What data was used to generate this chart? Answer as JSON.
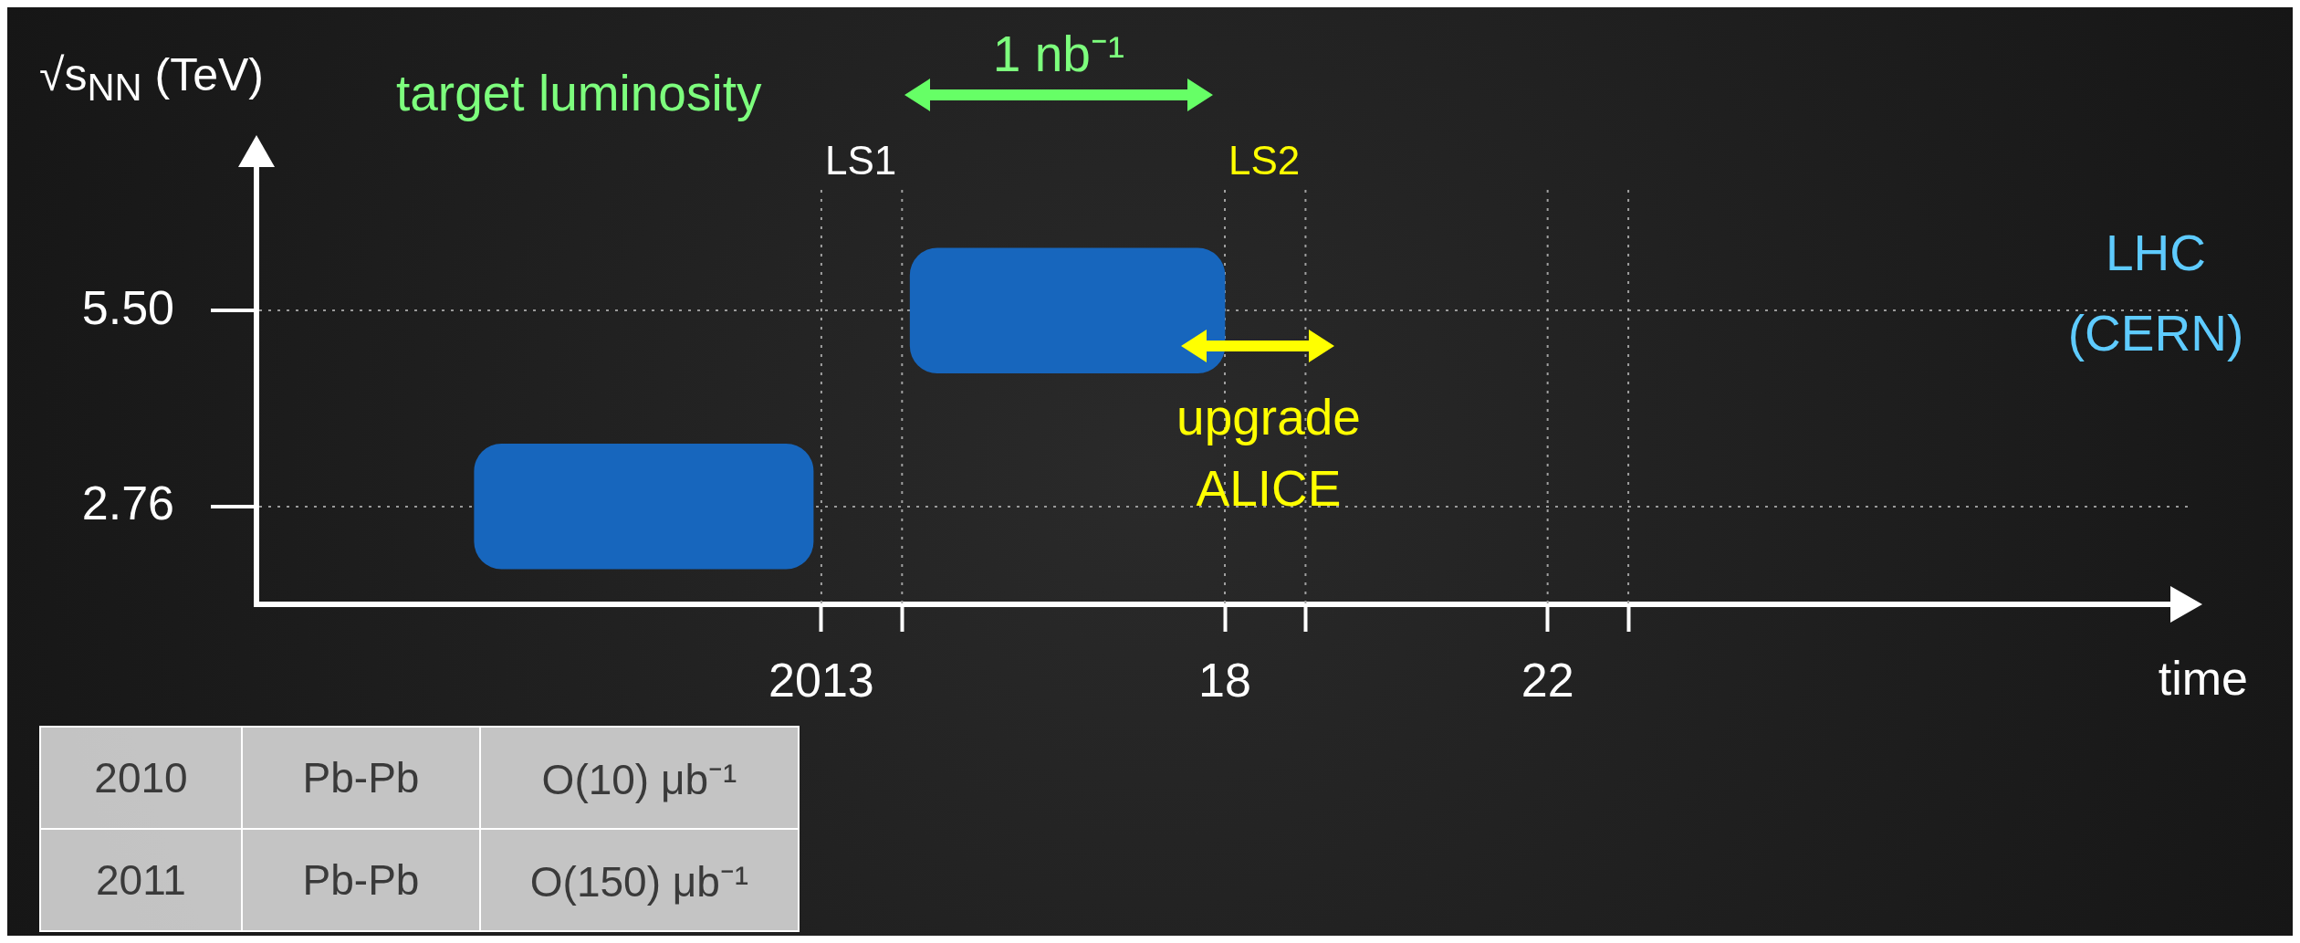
{
  "chart_data": {
    "type": "bar",
    "orientation": "horizontal",
    "categories": [
      "5.50",
      "2.76"
    ],
    "values": [
      3.9,
      4.2
    ],
    "base": [
      2014.1,
      2008.7
    ],
    "color": "#1766bd",
    "xlim": [
      2006,
      2030
    ],
    "xticks": [
      {
        "value": 2013,
        "label": "2013"
      },
      {
        "value": 2014,
        "label": null
      },
      {
        "value": 2018,
        "label": "18"
      },
      {
        "value": 2019,
        "label": null
      },
      {
        "value": 2022,
        "label": "22"
      },
      {
        "value": 2023,
        "label": null
      }
    ],
    "xlabel": "time",
    "ylabel": "√s$_{NN}$ (TeV)",
    "grid": "y",
    "legend": false,
    "ref_lines": [
      {
        "axis": "x",
        "value": 2013,
        "label": "LS1",
        "color": "#a0a0a0",
        "line_style": "dotted"
      },
      {
        "axis": "x",
        "value": 2014,
        "color": "#a0a0a0",
        "line_style": "dotted"
      },
      {
        "axis": "x",
        "value": 2018,
        "label": "LS2",
        "color": "#a0a0a0",
        "line_style": "dotted"
      },
      {
        "axis": "x",
        "value": 2019,
        "color": "#a0a0a0",
        "line_style": "dotted"
      },
      {
        "axis": "x",
        "value": 2022,
        "color": "#a0a0a0",
        "line_style": "dotted"
      },
      {
        "axis": "x",
        "value": 2023,
        "color": "#a0a0a0",
        "line_style": "dotted"
      }
    ],
    "annotations": [
      "target luminosity",
      "1 nb⁻¹",
      "upgrade ALICE",
      "LHC (CERN)",
      "2010",
      "Pb-Pb",
      "O(10) μb⁻¹",
      "2011",
      "Pb-Pb",
      "O(150) μb⁻¹"
    ]
  }
}
